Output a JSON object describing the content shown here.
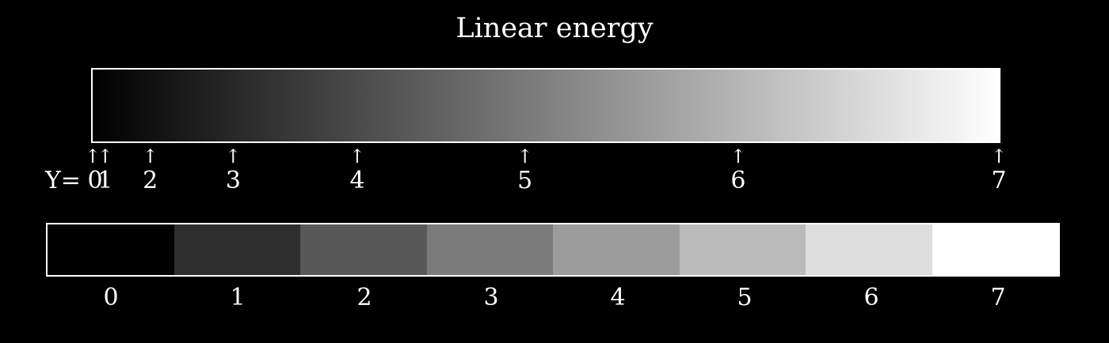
{
  "title": "Linear energy",
  "gradient": {
    "start_color": "#000000",
    "end_color": "#ffffff",
    "steps": [
      0,
      1,
      2,
      3,
      4,
      5,
      6,
      7
    ],
    "prefix_label": "Y=",
    "arrow_glyph": "↑",
    "tick_labels": [
      "0",
      "1",
      "2",
      "3",
      "4",
      "5",
      "6",
      "7"
    ]
  },
  "swatches": [
    {
      "label": "0",
      "color": "#000000"
    },
    {
      "label": "1",
      "color": "#2e2e2e"
    },
    {
      "label": "2",
      "color": "#585858"
    },
    {
      "label": "3",
      "color": "#7b7b7b"
    },
    {
      "label": "4",
      "color": "#9c9c9c"
    },
    {
      "label": "5",
      "color": "#bbbbbb"
    },
    {
      "label": "6",
      "color": "#dedede"
    },
    {
      "label": "7",
      "color": "#ffffff"
    }
  ]
}
